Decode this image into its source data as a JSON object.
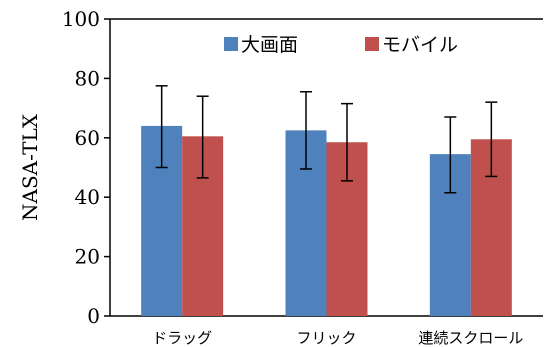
{
  "chart_data": {
    "type": "bar",
    "ylabel": "NASA-TLX",
    "ylim": [
      0,
      100
    ],
    "yticks": [
      0,
      20,
      40,
      60,
      80,
      100
    ],
    "categories": [
      "ドラッグ",
      "フリック",
      "連続スクロール"
    ],
    "series": [
      {
        "name": "大画面",
        "color": "#4f81bd",
        "values": [
          64,
          62.5,
          54.5
        ],
        "err_low": [
          50,
          49.5,
          41.5
        ],
        "err_high": [
          77.5,
          75.5,
          67
        ]
      },
      {
        "name": "モバイル",
        "color": "#c0504d",
        "values": [
          60.5,
          58.5,
          59.5
        ],
        "err_low": [
          46.5,
          45.5,
          47
        ],
        "err_high": [
          74,
          71.5,
          72
        ]
      }
    ],
    "legend": "top-right",
    "grid": false
  }
}
